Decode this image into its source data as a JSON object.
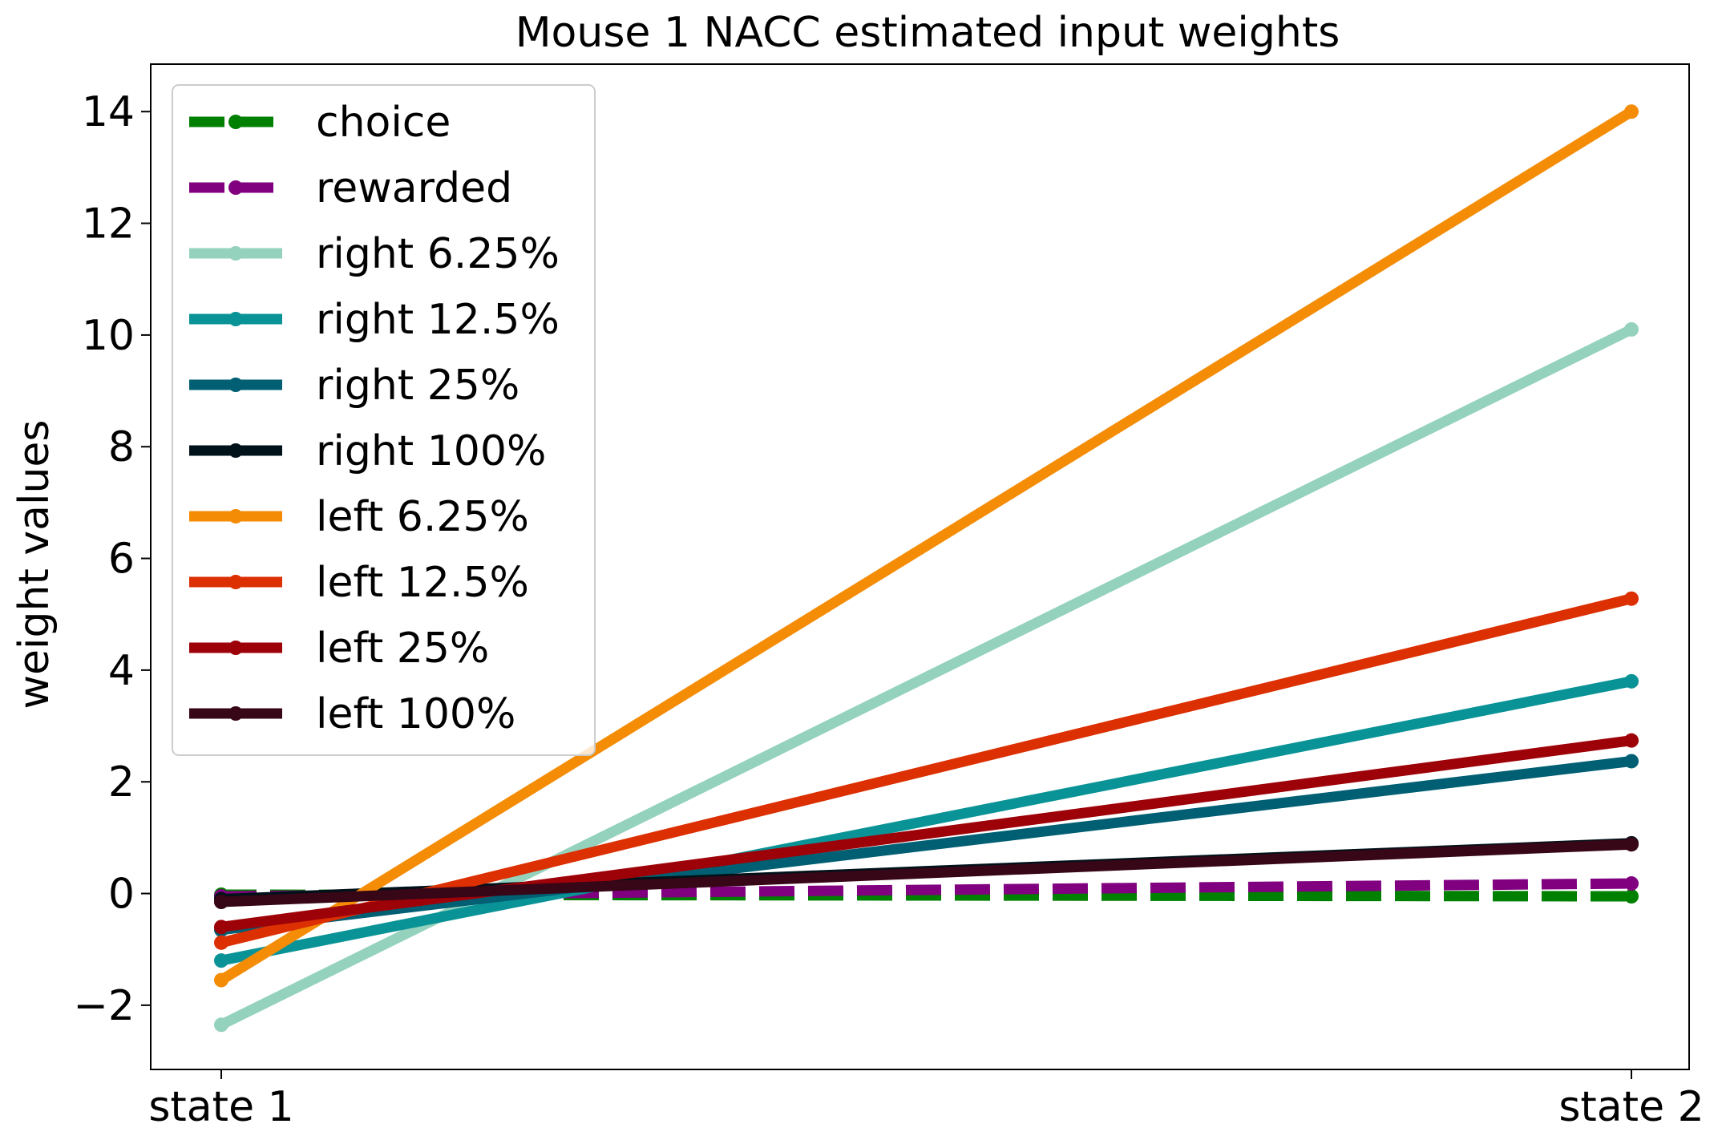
{
  "chart_data": {
    "type": "line",
    "title": "Mouse 1 NACC estimated input weights",
    "xlabel": "",
    "ylabel": "weight values",
    "categories": [
      "state 1",
      "state 2"
    ],
    "ylim": [
      -3.15,
      14.85
    ],
    "yticks": [
      -2,
      0,
      2,
      4,
      6,
      8,
      10,
      12,
      14
    ],
    "ytick_labels": [
      "−2",
      "0",
      "2",
      "4",
      "6",
      "8",
      "10",
      "12",
      "14"
    ],
    "grid": false,
    "legend_position": "upper-left",
    "series": [
      {
        "name": "choice",
        "values": [
          -0.02,
          -0.05
        ],
        "color": "#008000",
        "dashed": true
      },
      {
        "name": "rewarded",
        "values": [
          -0.05,
          0.18
        ],
        "color": "#800080",
        "dashed": true
      },
      {
        "name": "right 6.25%",
        "values": [
          -2.35,
          10.1
        ],
        "color": "#94d2bd",
        "dashed": false
      },
      {
        "name": "right 12.5%",
        "values": [
          -1.2,
          3.8
        ],
        "color": "#0a9396",
        "dashed": false
      },
      {
        "name": "right 25%",
        "values": [
          -0.65,
          2.37
        ],
        "color": "#005f73",
        "dashed": false
      },
      {
        "name": "right 100%",
        "values": [
          -0.1,
          0.9
        ],
        "color": "#001219",
        "dashed": false
      },
      {
        "name": "left 6.25%",
        "values": [
          -1.55,
          14.0
        ],
        "color": "#f48c06",
        "dashed": false
      },
      {
        "name": "left 12.5%",
        "values": [
          -0.88,
          5.28
        ],
        "color": "#dc2f02",
        "dashed": false
      },
      {
        "name": "left 25%",
        "values": [
          -0.6,
          2.74
        ],
        "color": "#9d0208",
        "dashed": false
      },
      {
        "name": "left 100%",
        "values": [
          -0.15,
          0.88
        ],
        "color": "#370617",
        "dashed": false
      }
    ]
  }
}
